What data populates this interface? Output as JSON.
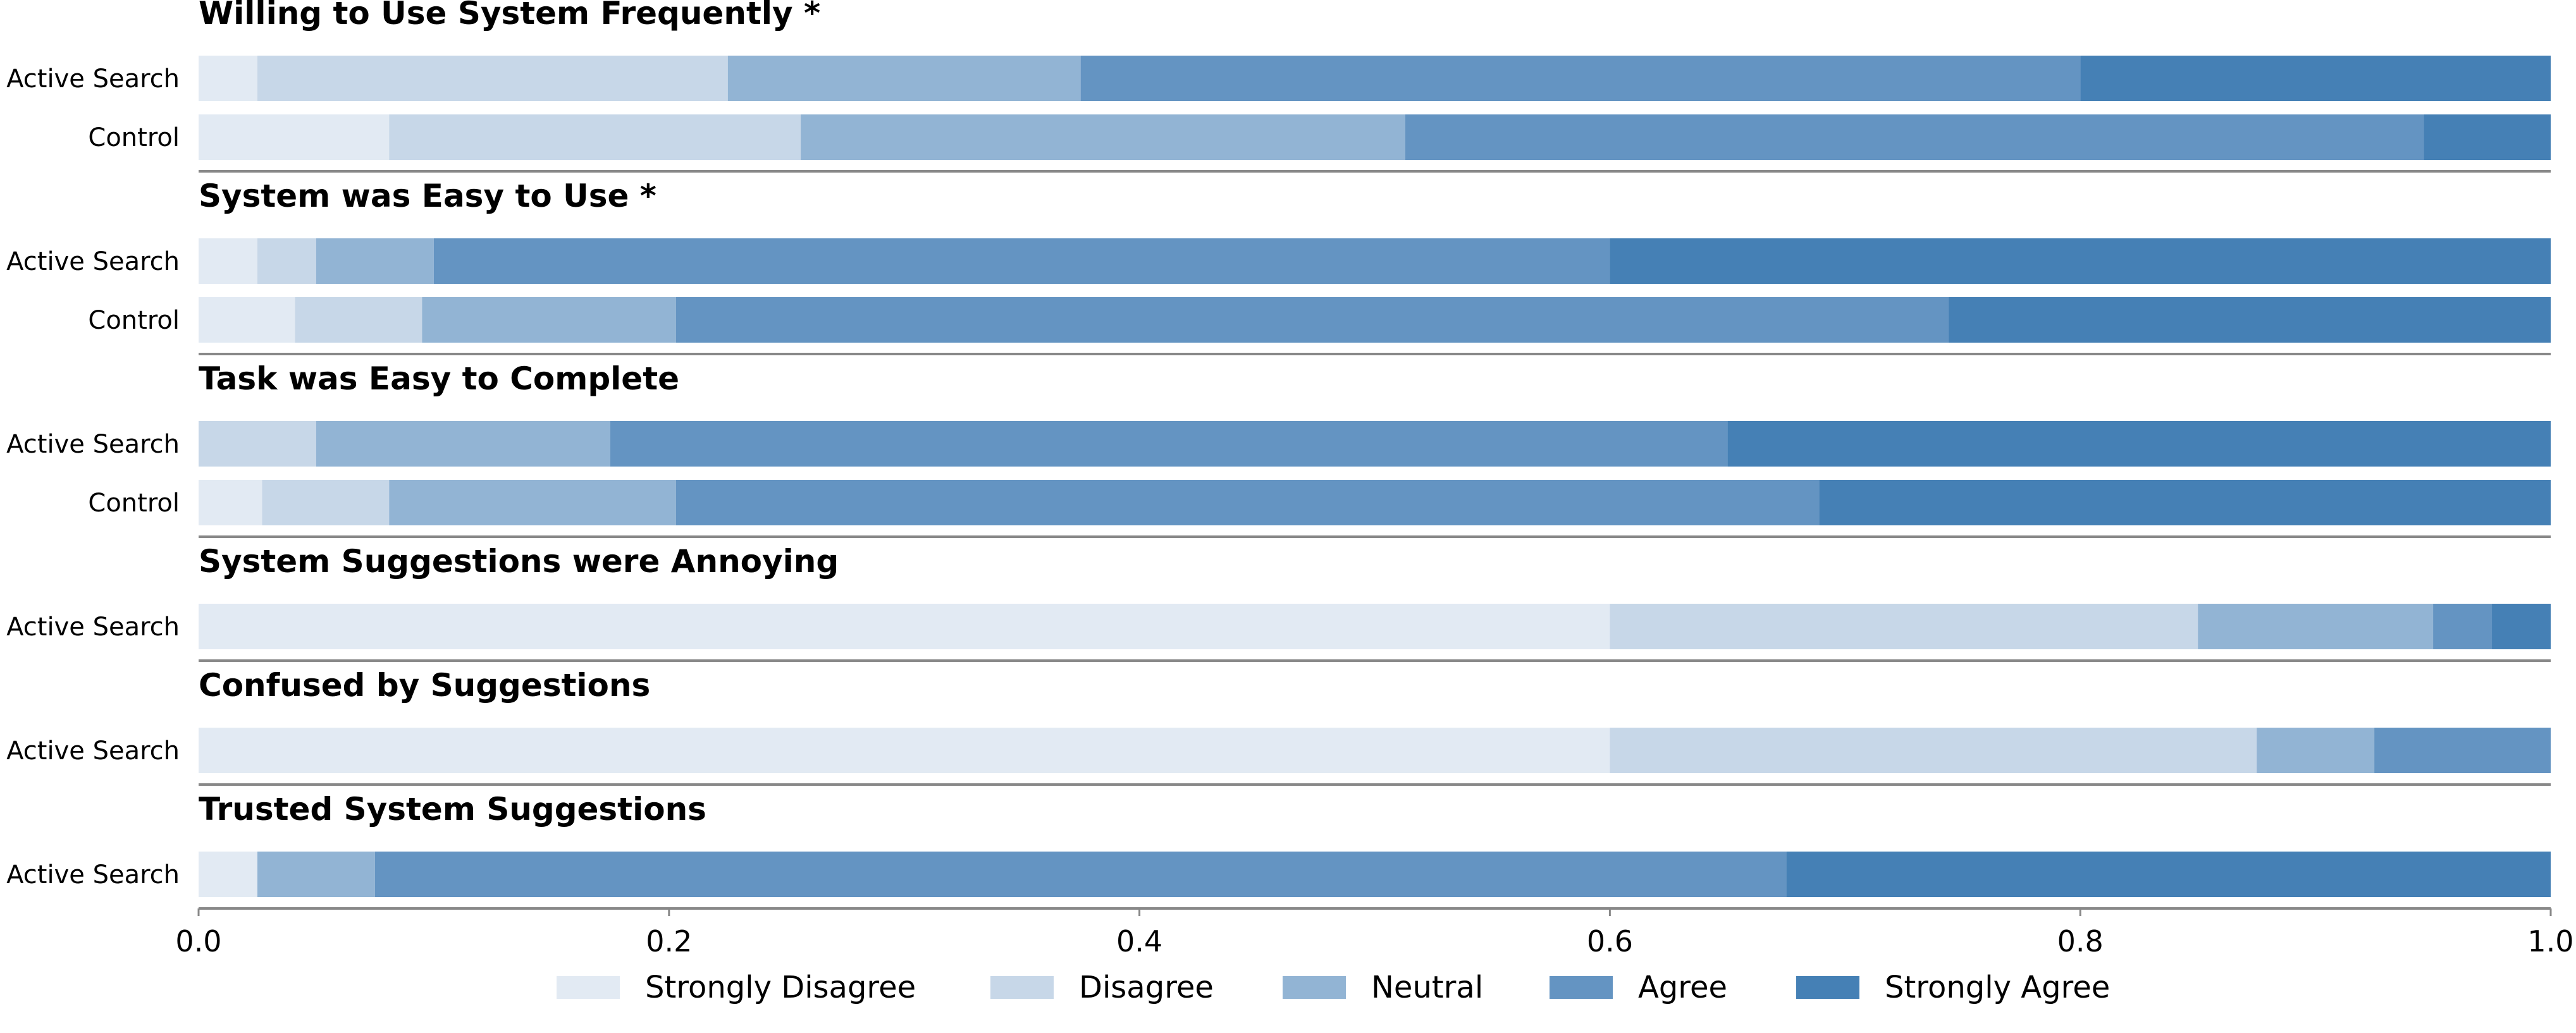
{
  "chart_data": {
    "type": "bar",
    "orientation": "horizontal",
    "stacked": true,
    "xlim": [
      0,
      1
    ],
    "xticks": [
      "0.0",
      "0.2",
      "0.4",
      "0.6",
      "0.8",
      "1.0"
    ],
    "xtick_values": [
      0,
      0.2,
      0.4,
      0.6,
      0.8,
      1.0
    ],
    "legend": {
      "placement": "bottom-center",
      "entries": [
        "Strongly Disagree",
        "Disagree",
        "Neutral",
        "Agree",
        "Strongly Agree"
      ]
    },
    "colors": [
      "#e2eaf3",
      "#c7d7e8",
      "#92b4d4",
      "#6494c2",
      "#4580b5"
    ],
    "groups": [
      {
        "title": "Willing to Use System Frequently *",
        "rows": [
          {
            "label": "Active Search",
            "values": [
              0.025,
              0.2,
              0.15,
              0.425,
              0.2
            ]
          },
          {
            "label": "Control",
            "values": [
              0.081,
              0.175,
              0.257,
              0.433,
              0.054
            ]
          }
        ]
      },
      {
        "title": "System was Easy to Use *",
        "rows": [
          {
            "label": "Active Search",
            "values": [
              0.025,
              0.025,
              0.05,
              0.5,
              0.4
            ]
          },
          {
            "label": "Control",
            "values": [
              0.041,
              0.054,
              0.108,
              0.541,
              0.256
            ]
          }
        ]
      },
      {
        "title": "Task was Easy to Complete",
        "rows": [
          {
            "label": "Active Search",
            "values": [
              0.0,
              0.05,
              0.125,
              0.475,
              0.35
            ]
          },
          {
            "label": "Control",
            "values": [
              0.027,
              0.054,
              0.122,
              0.486,
              0.311
            ]
          }
        ]
      },
      {
        "title": "System Suggestions were Annoying",
        "rows": [
          {
            "label": "Active Search",
            "values": [
              0.6,
              0.25,
              0.1,
              0.025,
              0.025
            ]
          }
        ]
      },
      {
        "title": "Confused by Suggestions",
        "rows": [
          {
            "label": "Active Search",
            "values": [
              0.6,
              0.275,
              0.05,
              0.075,
              0.0
            ]
          }
        ]
      },
      {
        "title": "Trusted System Suggestions",
        "rows": [
          {
            "label": "Active Search",
            "values": [
              0.025,
              0.0,
              0.05,
              0.6,
              0.325
            ]
          }
        ]
      }
    ]
  }
}
